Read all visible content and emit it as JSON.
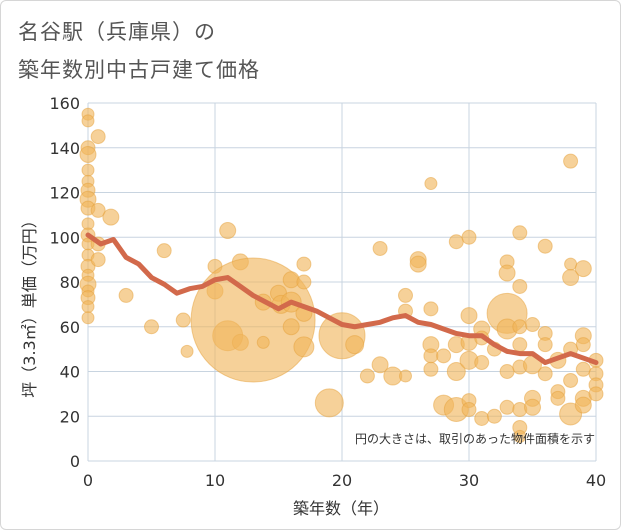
{
  "chart_data": {
    "type": "scatter",
    "title_line1": "名谷駅（兵庫県）の",
    "title_line2": "築年数別中古戸建て価格",
    "xlabel": "築年数（年）",
    "ylabel": "坪（3.3㎡）単価（万円）",
    "note": "円の大きさは、取引のあった物件面積を示す",
    "xlim": [
      0,
      40
    ],
    "ylim": [
      0,
      160
    ],
    "xticks": [
      0,
      10,
      20,
      30,
      40
    ],
    "yticks": [
      0,
      20,
      40,
      60,
      80,
      100,
      120,
      140,
      160
    ],
    "colors": {
      "bubble": "#f0b55a",
      "bubble_edge": "#e6a23c",
      "trend": "#d2694b",
      "grid": "#c8d4e0"
    },
    "points": [
      {
        "x": 0,
        "y": 155,
        "s": 6
      },
      {
        "x": 0,
        "y": 152,
        "s": 6
      },
      {
        "x": 0,
        "y": 140,
        "s": 7
      },
      {
        "x": 0,
        "y": 137,
        "s": 8
      },
      {
        "x": 0,
        "y": 130,
        "s": 6
      },
      {
        "x": 0,
        "y": 125,
        "s": 6
      },
      {
        "x": 0,
        "y": 121,
        "s": 7
      },
      {
        "x": 0,
        "y": 117,
        "s": 8
      },
      {
        "x": 0,
        "y": 113,
        "s": 7
      },
      {
        "x": 0,
        "y": 106,
        "s": 6
      },
      {
        "x": 0,
        "y": 101,
        "s": 7
      },
      {
        "x": 0,
        "y": 97,
        "s": 6
      },
      {
        "x": 0,
        "y": 92,
        "s": 6
      },
      {
        "x": 0,
        "y": 87,
        "s": 7
      },
      {
        "x": 0,
        "y": 83,
        "s": 6
      },
      {
        "x": 0,
        "y": 79,
        "s": 8
      },
      {
        "x": 0,
        "y": 76,
        "s": 6
      },
      {
        "x": 0,
        "y": 73,
        "s": 7
      },
      {
        "x": 0,
        "y": 69,
        "s": 6
      },
      {
        "x": 0,
        "y": 64,
        "s": 6
      },
      {
        "x": 0.8,
        "y": 145,
        "s": 7
      },
      {
        "x": 0.8,
        "y": 112,
        "s": 7
      },
      {
        "x": 0.8,
        "y": 97,
        "s": 7
      },
      {
        "x": 0.8,
        "y": 90,
        "s": 7
      },
      {
        "x": 1.8,
        "y": 109,
        "s": 8
      },
      {
        "x": 3,
        "y": 74,
        "s": 7
      },
      {
        "x": 5,
        "y": 60,
        "s": 7
      },
      {
        "x": 6,
        "y": 94,
        "s": 7
      },
      {
        "x": 7.5,
        "y": 63,
        "s": 7
      },
      {
        "x": 7.8,
        "y": 49,
        "s": 6
      },
      {
        "x": 10,
        "y": 87,
        "s": 7
      },
      {
        "x": 10,
        "y": 76,
        "s": 8
      },
      {
        "x": 11,
        "y": 103,
        "s": 8
      },
      {
        "x": 12,
        "y": 89,
        "s": 8
      },
      {
        "x": 11,
        "y": 56,
        "s": 15
      },
      {
        "x": 12,
        "y": 53,
        "s": 8
      },
      {
        "x": 13,
        "y": 63,
        "s": 62
      },
      {
        "x": 13.8,
        "y": 53,
        "s": 6
      },
      {
        "x": 13.8,
        "y": 71,
        "s": 8
      },
      {
        "x": 15,
        "y": 75,
        "s": 8
      },
      {
        "x": 15.2,
        "y": 70,
        "s": 9
      },
      {
        "x": 16,
        "y": 81,
        "s": 8
      },
      {
        "x": 16,
        "y": 71,
        "s": 10
      },
      {
        "x": 16,
        "y": 60,
        "s": 8
      },
      {
        "x": 17,
        "y": 88,
        "s": 7
      },
      {
        "x": 17,
        "y": 80,
        "s": 7
      },
      {
        "x": 17,
        "y": 66,
        "s": 8
      },
      {
        "x": 17,
        "y": 51,
        "s": 10
      },
      {
        "x": 19,
        "y": 26,
        "s": 14
      },
      {
        "x": 20,
        "y": 56,
        "s": 23
      },
      {
        "x": 21,
        "y": 52,
        "s": 9
      },
      {
        "x": 22,
        "y": 38,
        "s": 7
      },
      {
        "x": 23,
        "y": 95,
        "s": 7
      },
      {
        "x": 23,
        "y": 43,
        "s": 8
      },
      {
        "x": 24,
        "y": 38,
        "s": 9
      },
      {
        "x": 25,
        "y": 74,
        "s": 7
      },
      {
        "x": 25,
        "y": 67,
        "s": 7
      },
      {
        "x": 25,
        "y": 38,
        "s": 6
      },
      {
        "x": 26,
        "y": 90,
        "s": 8
      },
      {
        "x": 26,
        "y": 88,
        "s": 8
      },
      {
        "x": 27,
        "y": 124,
        "s": 6
      },
      {
        "x": 27,
        "y": 68,
        "s": 7
      },
      {
        "x": 27,
        "y": 52,
        "s": 8
      },
      {
        "x": 27,
        "y": 47,
        "s": 7
      },
      {
        "x": 27,
        "y": 41,
        "s": 7
      },
      {
        "x": 28,
        "y": 25,
        "s": 10
      },
      {
        "x": 28,
        "y": 47,
        "s": 7
      },
      {
        "x": 29,
        "y": 98,
        "s": 7
      },
      {
        "x": 29,
        "y": 52,
        "s": 8
      },
      {
        "x": 29,
        "y": 40,
        "s": 9
      },
      {
        "x": 29,
        "y": 23,
        "s": 12
      },
      {
        "x": 30,
        "y": 100,
        "s": 7
      },
      {
        "x": 30,
        "y": 65,
        "s": 8
      },
      {
        "x": 30,
        "y": 53,
        "s": 8
      },
      {
        "x": 30,
        "y": 45,
        "s": 9
      },
      {
        "x": 30,
        "y": 27,
        "s": 7
      },
      {
        "x": 30,
        "y": 23,
        "s": 7
      },
      {
        "x": 31,
        "y": 59,
        "s": 8
      },
      {
        "x": 31,
        "y": 55,
        "s": 7
      },
      {
        "x": 31,
        "y": 44,
        "s": 7
      },
      {
        "x": 31,
        "y": 19,
        "s": 7
      },
      {
        "x": 32,
        "y": 50,
        "s": 7
      },
      {
        "x": 32,
        "y": 20,
        "s": 7
      },
      {
        "x": 33,
        "y": 89,
        "s": 7
      },
      {
        "x": 33,
        "y": 84,
        "s": 8
      },
      {
        "x": 33,
        "y": 66,
        "s": 20
      },
      {
        "x": 33,
        "y": 59,
        "s": 10
      },
      {
        "x": 33,
        "y": 40,
        "s": 7
      },
      {
        "x": 33,
        "y": 24,
        "s": 7
      },
      {
        "x": 34,
        "y": 102,
        "s": 7
      },
      {
        "x": 34,
        "y": 78,
        "s": 7
      },
      {
        "x": 34,
        "y": 60,
        "s": 7
      },
      {
        "x": 34,
        "y": 52,
        "s": 7
      },
      {
        "x": 34,
        "y": 42,
        "s": 7
      },
      {
        "x": 34,
        "y": 23,
        "s": 7
      },
      {
        "x": 34,
        "y": 15,
        "s": 7
      },
      {
        "x": 34,
        "y": 11,
        "s": 6
      },
      {
        "x": 35,
        "y": 61,
        "s": 7
      },
      {
        "x": 35,
        "y": 43,
        "s": 9
      },
      {
        "x": 35,
        "y": 28,
        "s": 8
      },
      {
        "x": 35,
        "y": 24,
        "s": 8
      },
      {
        "x": 36,
        "y": 96,
        "s": 7
      },
      {
        "x": 36,
        "y": 57,
        "s": 7
      },
      {
        "x": 36,
        "y": 52,
        "s": 7
      },
      {
        "x": 36,
        "y": 39,
        "s": 7
      },
      {
        "x": 37,
        "y": 45,
        "s": 8
      },
      {
        "x": 37,
        "y": 31,
        "s": 7
      },
      {
        "x": 37,
        "y": 28,
        "s": 7
      },
      {
        "x": 38,
        "y": 134,
        "s": 7
      },
      {
        "x": 38,
        "y": 88,
        "s": 6
      },
      {
        "x": 38,
        "y": 82,
        "s": 8
      },
      {
        "x": 38,
        "y": 50,
        "s": 7
      },
      {
        "x": 38,
        "y": 36,
        "s": 7
      },
      {
        "x": 38,
        "y": 21,
        "s": 11
      },
      {
        "x": 39,
        "y": 86,
        "s": 8
      },
      {
        "x": 39,
        "y": 56,
        "s": 8
      },
      {
        "x": 39,
        "y": 52,
        "s": 7
      },
      {
        "x": 39,
        "y": 41,
        "s": 7
      },
      {
        "x": 39,
        "y": 28,
        "s": 8
      },
      {
        "x": 39,
        "y": 25,
        "s": 8
      },
      {
        "x": 40,
        "y": 45,
        "s": 7
      },
      {
        "x": 40,
        "y": 39,
        "s": 7
      },
      {
        "x": 40,
        "y": 34,
        "s": 7
      },
      {
        "x": 40,
        "y": 30,
        "s": 7
      }
    ],
    "trend": {
      "x": [
        0,
        1,
        2,
        3,
        4,
        5,
        6,
        7,
        8,
        9,
        10,
        11,
        12,
        13,
        14,
        15,
        16,
        17,
        18,
        19,
        20,
        21,
        22,
        23,
        24,
        25,
        26,
        27,
        28,
        29,
        30,
        31,
        32,
        33,
        34,
        35,
        36,
        37,
        38,
        39,
        40
      ],
      "y": [
        101,
        97,
        99,
        91,
        88,
        82,
        79,
        75,
        77,
        78,
        81,
        82,
        78,
        74,
        71,
        68,
        71,
        69,
        67,
        64,
        61,
        60,
        61,
        62,
        64,
        65,
        62,
        61,
        59,
        57,
        56,
        56,
        52,
        49,
        48,
        48,
        44,
        46,
        48,
        46,
        44
      ]
    }
  }
}
